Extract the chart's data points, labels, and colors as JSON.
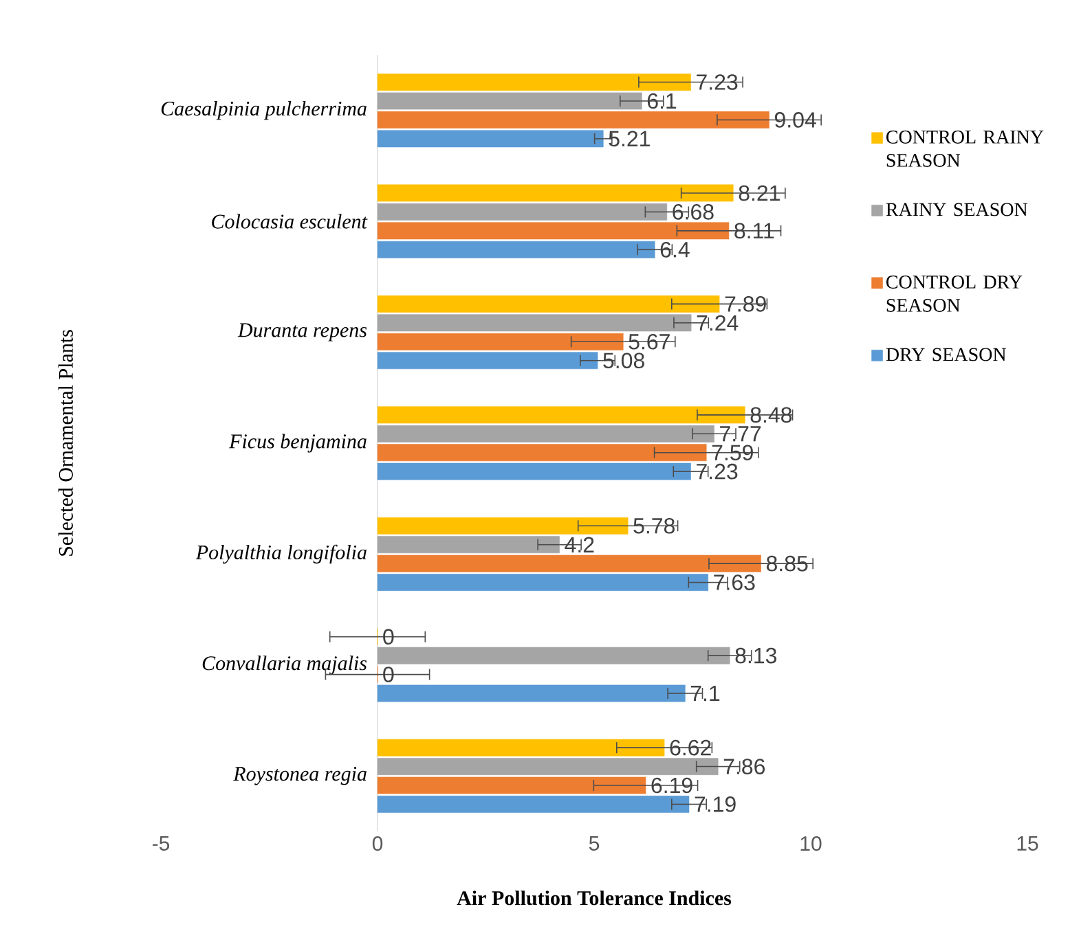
{
  "chart_data": {
    "type": "bar",
    "orientation": "horizontal",
    "xlabel": "Air Pollution Tolerance Indices",
    "ylabel": "Selected Ornamental Plants",
    "categories": [
      "Caesalpinia pulcherrima",
      "Colocasia esculent",
      "Duranta repens",
      "Ficus benjamina",
      "Polyalthia longifolia",
      "Convallaria majalis",
      "Roystonea regia"
    ],
    "xlim": [
      -5,
      15
    ],
    "xticks": [
      -5,
      0,
      5,
      10,
      15
    ],
    "grid": false,
    "legend": "right",
    "data_labels": true,
    "series": [
      {
        "name": "DRY SEASON",
        "color": "#5b9bd5",
        "values": [
          5.21,
          6.4,
          5.08,
          7.23,
          7.63,
          7.1,
          7.19
        ],
        "errors": [
          0.2,
          0.4,
          0.4,
          0.4,
          0.45,
          0.4,
          0.4
        ]
      },
      {
        "name": "CONTROL DRY SEASON",
        "color": "#ed7d31",
        "values": [
          9.04,
          8.11,
          5.67,
          7.59,
          8.85,
          0,
          6.19
        ],
        "errors": [
          1.2,
          1.2,
          1.2,
          1.2,
          1.2,
          1.2,
          1.2
        ]
      },
      {
        "name": "RAINY SEASON",
        "color": "#a5a5a5",
        "values": [
          6.1,
          6.68,
          7.24,
          7.77,
          4.2,
          8.13,
          7.86
        ],
        "errors": [
          0.5,
          0.5,
          0.4,
          0.5,
          0.5,
          0.5,
          0.5
        ]
      },
      {
        "name": "CONTROL RAINY SEASON",
        "color": "#ffc000",
        "values": [
          7.23,
          8.21,
          7.89,
          8.48,
          5.78,
          0,
          6.62
        ],
        "errors": [
          1.2,
          1.2,
          1.1,
          1.1,
          1.15,
          1.1,
          1.1
        ]
      }
    ]
  }
}
